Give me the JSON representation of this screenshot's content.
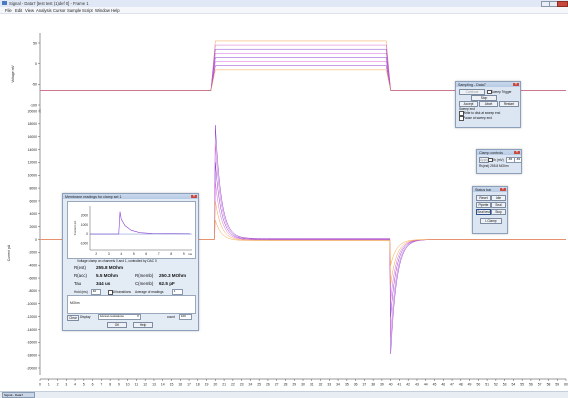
{
  "window": {
    "title": "Signal - Data7 [test test (1)def 0] - Frame 1",
    "menu": [
      "File",
      "Edit",
      "View",
      "Analysis",
      "Cursor",
      "Sample",
      "Script",
      "Window",
      "Help"
    ]
  },
  "colors": {
    "trace_pink": "#d96bd8",
    "trace_purple": "#8a3fcf",
    "trace_orange": "#f3a24a",
    "axis": "#333333",
    "dialog_bg": "#dce6f3",
    "close_btn": "#c9483d"
  },
  "chart_data": [
    {
      "type": "line",
      "title": "",
      "ylabel": "Voltage mV",
      "ylim": [
        -100,
        60
      ],
      "yticks": [
        "50",
        "0",
        "-50",
        "-100"
      ],
      "baseline": -65,
      "x": [
        0,
        19.5,
        20,
        39.5,
        40,
        60
      ],
      "series": [
        {
          "values": [
            -65,
            -65,
            55,
            55,
            -65,
            -65
          ]
        },
        {
          "values": [
            -65,
            -65,
            45,
            45,
            -65,
            -65
          ]
        },
        {
          "values": [
            -65,
            -65,
            35,
            35,
            -65,
            -65
          ]
        },
        {
          "values": [
            -65,
            -65,
            25,
            25,
            -65,
            -65
          ]
        },
        {
          "values": [
            -65,
            -65,
            15,
            15,
            -65,
            -65
          ]
        },
        {
          "values": [
            -65,
            -65,
            5,
            5,
            -65,
            -65
          ]
        },
        {
          "values": [
            -65,
            -65,
            -5,
            -5,
            -65,
            -65
          ]
        },
        {
          "values": [
            -65,
            -65,
            -15,
            -15,
            -65,
            -65
          ]
        }
      ]
    },
    {
      "type": "line",
      "title": "",
      "ylabel": "Current pA",
      "ylim": [
        -21000,
        21000
      ],
      "yticks": [
        "20000",
        "18000",
        "16000",
        "14000",
        "12000",
        "10000",
        "8000",
        "6000",
        "4000",
        "2000",
        "0",
        "-2000",
        "-4000",
        "-6000",
        "-8000",
        "-10000",
        "-12000",
        "-14000",
        "-16000",
        "-18000",
        "-20000"
      ],
      "xlim": [
        0,
        60
      ],
      "xticks": [
        "0",
        "1",
        "2",
        "3",
        "4",
        "5",
        "6",
        "7",
        "8",
        "9",
        "10",
        "11",
        "12",
        "13",
        "14",
        "15",
        "16",
        "17",
        "18",
        "19",
        "20",
        "21",
        "22",
        "23",
        "24",
        "25",
        "26",
        "27",
        "28",
        "29",
        "30",
        "31",
        "32",
        "33",
        "34",
        "35",
        "36",
        "37",
        "38",
        "39",
        "40",
        "41",
        "42",
        "43",
        "44",
        "45",
        "46",
        "47",
        "48",
        "49",
        "50",
        "51",
        "52",
        "53",
        "54",
        "55",
        "56",
        "57",
        "58",
        "59",
        "60"
      ],
      "series": [
        {
          "peak_on": 17800,
          "peak_off": -17800,
          "steady": 150
        },
        {
          "peak_on": 15000,
          "peak_off": -15200,
          "steady": 80
        },
        {
          "peak_on": 12000,
          "peak_off": -12000,
          "steady": 20
        },
        {
          "peak_on": 9000,
          "peak_off": -9500,
          "steady": -40
        },
        {
          "peak_on": 6000,
          "peak_off": -7000,
          "steady": -100
        },
        {
          "peak_on": 3000,
          "peak_off": -4000,
          "steady": -160
        }
      ]
    }
  ],
  "sampling": {
    "title": "Sampling - Data7",
    "buttons": [
      "Continue",
      "Sweep Trigger",
      "Stop",
      "Accept",
      "Abort",
      "Restart"
    ],
    "sweep_end_label": "Sweep end",
    "checks": [
      "Write to disk at sweep end",
      "Pause at sweep end"
    ]
  },
  "clamp": {
    "title": "Clamp controls",
    "field_label": "Vh (mV)",
    "field_value": "-65",
    "field_value2": "-65",
    "info": "Rs(est) 255.8 MOhm"
  },
  "seal": {
    "title": "Status bar",
    "buttons": [
      "Reset",
      "Idle",
      "Pipette",
      "Seal",
      "Seal test",
      "Stop",
      "I-Clamp"
    ]
  },
  "membrane": {
    "title": "Membrane readings for clamp set 1",
    "mini_yticks": [
      "2000",
      "1000",
      "0",
      "-1000"
    ],
    "mini_ylabel": "Current pA",
    "mini_xticks": [
      "2",
      "3",
      "4",
      "5",
      "6",
      "7",
      "8",
      "9"
    ],
    "mini_xlabel": "ms",
    "mini_chart": {
      "type": "line",
      "xlim": [
        1.5,
        9.5
      ],
      "ylim": [
        -1500,
        2800
      ],
      "x": [
        1.5,
        3.8,
        3.9,
        4.0,
        4.3,
        4.8,
        5.5,
        6.5,
        9.5
      ],
      "values": [
        0,
        0,
        2400,
        1600,
        900,
        400,
        150,
        50,
        20
      ]
    },
    "voltage_caption": "Voltage clamp on channels 0 and 1, controlled by DAC 0",
    "readings": [
      {
        "label": "R(est)",
        "value": "255.8 MOhm"
      },
      {
        "label": "R(acc)",
        "value": "5.5 MOhm"
      },
      {
        "label": "R(memb)",
        "value": "250.3 MOhm"
      },
      {
        "label": "Tau",
        "value": "344 us"
      },
      {
        "label": "C(memb)",
        "value": "62.5 pF"
      }
    ],
    "hold_label": "Hold (ms)",
    "hold_value": "40",
    "all_transitions": "All transitions",
    "avg_label": "Average of readings",
    "avg_value": "1",
    "unit_label": "MOhm",
    "display_label": "Display",
    "display_value": "Access resistance",
    "count_label": "count",
    "count_value": "100",
    "clear": "Clear",
    "ok": "OK",
    "help": "Help"
  },
  "taskbar": {
    "item": "Signal - Data7"
  }
}
